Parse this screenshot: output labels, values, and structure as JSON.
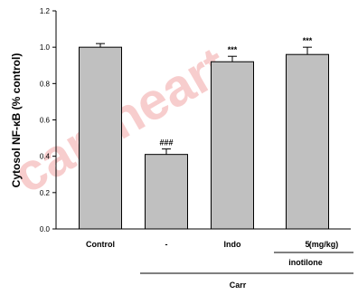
{
  "chart_data": {
    "type": "bar",
    "ylabel": "Cytosol NF-κB (% control)",
    "ylim": [
      0,
      1.2
    ],
    "yticks": [
      "0.0",
      "0.2",
      "0.4",
      "0.6",
      "0.8",
      "1.0",
      "1.2"
    ],
    "categories": [
      "Control",
      "-",
      "Indo",
      "5"
    ],
    "values": [
      1.0,
      0.41,
      0.92,
      0.96
    ],
    "errors": [
      0.02,
      0.03,
      0.03,
      0.04
    ],
    "significance": [
      "",
      "###",
      "***",
      "***"
    ],
    "unit_label": "(mg/kg)",
    "group_labels": {
      "inotilone": "inotilone",
      "carr": "Carr"
    },
    "bar_color": "#c0c0c0",
    "grid": false,
    "legend": "none"
  },
  "watermark": {
    "text": "careheart",
    "color": "#f2a6a6"
  }
}
